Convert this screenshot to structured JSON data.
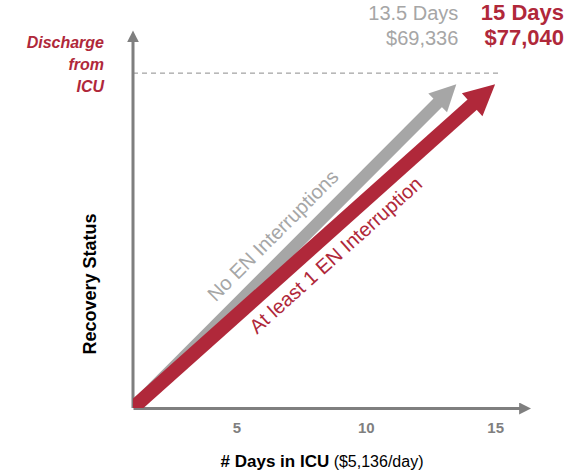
{
  "chart_data": {
    "type": "line",
    "xlabel": "# Days in ICU ($5,136/day)",
    "ylabel": "Recovery Status",
    "xlim": [
      1,
      16
    ],
    "xticks": [
      5,
      10,
      15
    ],
    "ylim": [
      0,
      100
    ],
    "tick_labels": "x",
    "discharge": {
      "label": [
        "Discharge",
        "from",
        "ICU"
      ],
      "y": 91
    },
    "series": [
      {
        "name": "No EN Interruptions",
        "color": "#a6a6a6",
        "marker": "arrow",
        "x": [
          1,
          13.5
        ],
        "values": [
          0,
          88
        ],
        "annotation": [
          "13.5 Days",
          "$69,336"
        ]
      },
      {
        "name": "At least 1 EN Interruption",
        "color": "#b0283a",
        "marker": "arrow",
        "x": [
          1,
          15
        ],
        "values": [
          0,
          88
        ],
        "annotation": [
          "15 Days",
          "$77,040"
        ]
      }
    ]
  }
}
